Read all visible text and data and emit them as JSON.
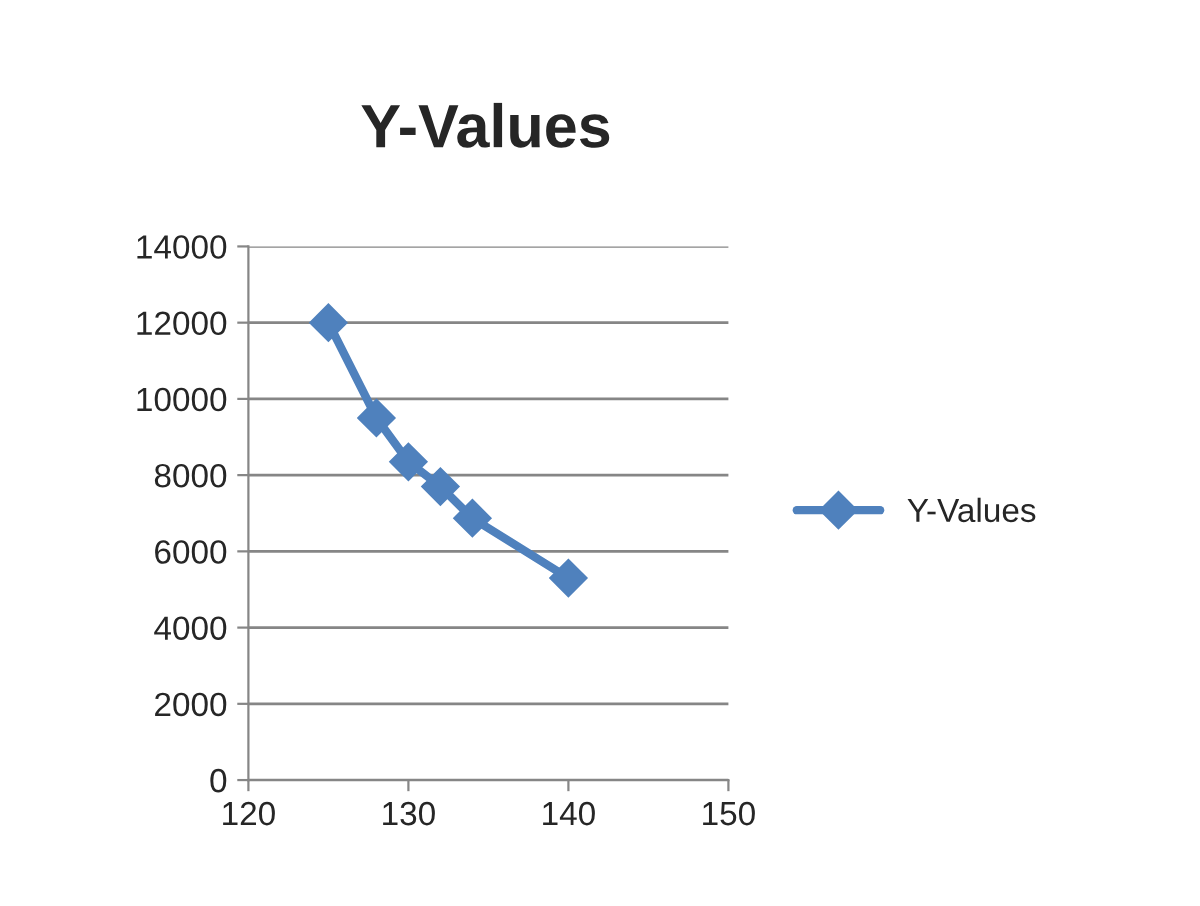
{
  "chart_data": {
    "type": "line",
    "title": "Y-Values",
    "x": [
      125,
      128,
      130,
      132,
      134,
      140
    ],
    "series": [
      {
        "name": "Y-Values",
        "color": "#4f81bd",
        "values": [
          12000,
          9500,
          8350,
          7700,
          6870,
          5300
        ]
      }
    ],
    "xlim": [
      120,
      150
    ],
    "xticks": [
      120,
      130,
      140,
      150
    ],
    "ylim": [
      0,
      14000
    ],
    "yticks": [
      0,
      2000,
      4000,
      6000,
      8000,
      10000,
      12000,
      14000
    ],
    "grid": "y",
    "legend": "right",
    "marker": "diamond",
    "line_style": "solid"
  }
}
